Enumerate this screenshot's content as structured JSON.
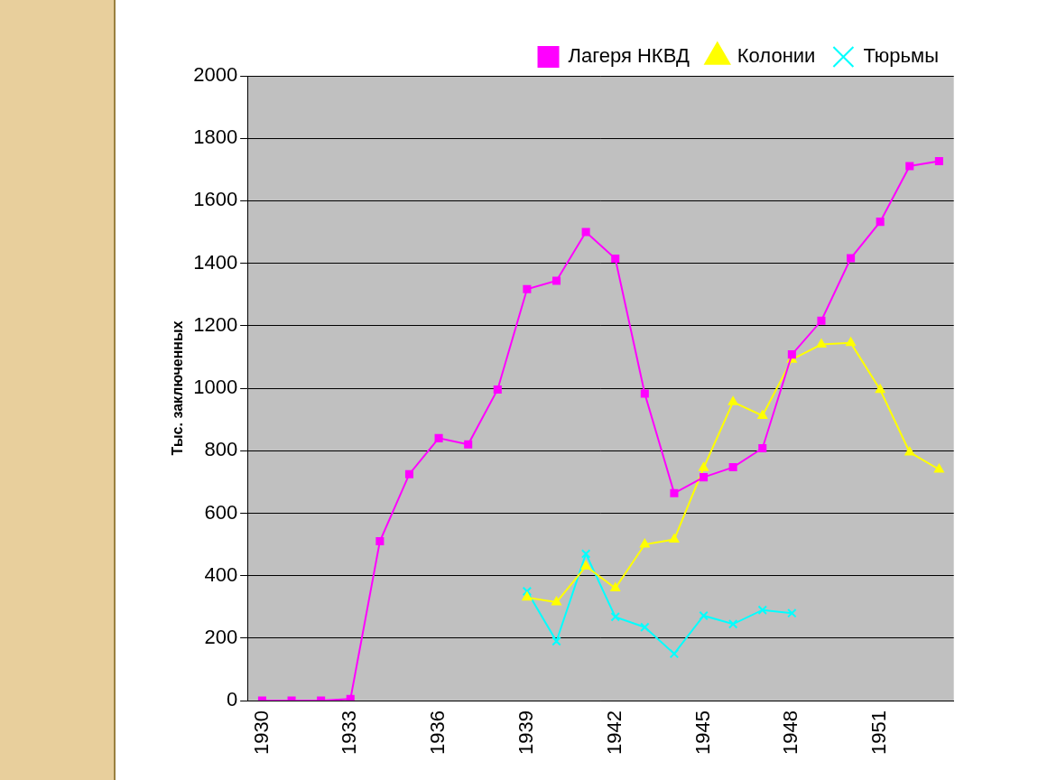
{
  "chart_data": {
    "type": "line",
    "y_label": "Тыс. заключенных",
    "categories": [
      "1930",
      null,
      null,
      "1933",
      null,
      null,
      "1936",
      null,
      null,
      "1939",
      null,
      null,
      "1942",
      null,
      null,
      "1945",
      null,
      null,
      "1948",
      null,
      null,
      "1951",
      null,
      null
    ],
    "series": [
      {
        "name": "Лагеря НКВД",
        "color": "#ff00ff",
        "marker": "square",
        "values": [
          0,
          0,
          0,
          5,
          510,
          725,
          840,
          820,
          996,
          1317,
          1344,
          1500,
          1415,
          983,
          664,
          715,
          747,
          808,
          1108,
          1216,
          1416,
          1533,
          1711,
          1727
        ]
      },
      {
        "name": "Колонии",
        "color": "#ffff00",
        "marker": "triangle",
        "values": [
          null,
          null,
          null,
          null,
          null,
          null,
          null,
          null,
          null,
          330,
          315,
          430,
          360,
          500,
          516,
          745,
          956,
          912,
          1092,
          1140,
          1145,
          995,
          795,
          740
        ]
      },
      {
        "name": "Тюрьмы",
        "color": "#00ffff",
        "marker": "x",
        "values": [
          null,
          null,
          null,
          null,
          null,
          null,
          null,
          null,
          null,
          350,
          190,
          470,
          268,
          235,
          150,
          272,
          245,
          290,
          280,
          null,
          null,
          null,
          null,
          null
        ]
      }
    ],
    "ylim": [
      0,
      2000
    ],
    "yticks": [
      0,
      200,
      400,
      600,
      800,
      1000,
      1200,
      1400,
      1600,
      1800,
      2000
    ],
    "grid": true,
    "legend": "top"
  }
}
